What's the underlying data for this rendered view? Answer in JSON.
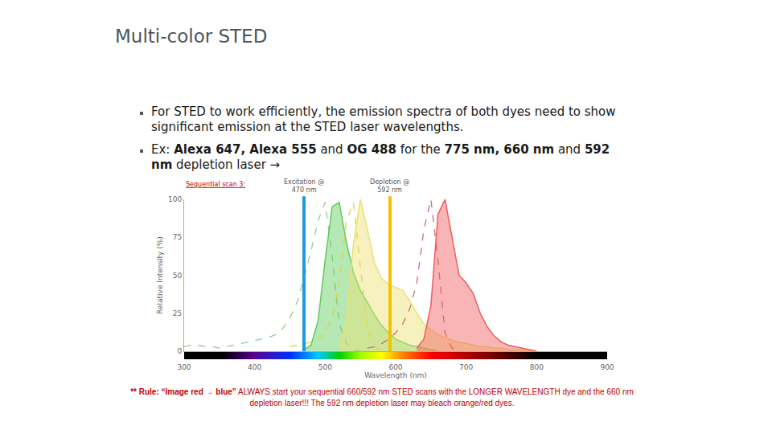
{
  "slide": {
    "title": "Multi-color STED",
    "bullets": [
      [
        {
          "text": "For STED to work efficiently, the emission spectra of both dyes need to show significant emission at the STED laser wavelengths.",
          "bold": false
        }
      ],
      [
        {
          "text": "Ex: ",
          "bold": false
        },
        {
          "text": "Alexa 647, Alexa 555",
          "bold": true
        },
        {
          "text": " and ",
          "bold": false
        },
        {
          "text": "OG 488",
          "bold": true
        },
        {
          "text": " for the ",
          "bold": false
        },
        {
          "text": "775 nm, 660 nm",
          "bold": true
        },
        {
          "text": " and ",
          "bold": false
        },
        {
          "text": "592 nm",
          "bold": true
        },
        {
          "text": " depletion laser →",
          "bold": false
        }
      ]
    ],
    "footer": [
      {
        "text": "** Rule: “Image red → blue”",
        "bold": true
      },
      {
        "text": " ALWAYS start your sequential 660/592 nm STED scans with the LONGER WAVELENGTH dye and the 660 nm depletion laser!!! The 592 nm depletion laser may bleach orange/red dyes.",
        "bold": false
      }
    ]
  },
  "chart_data": {
    "type": "line",
    "note": "Sequential scan 3:",
    "x_label": "Wavelength (nm)",
    "y_label": "Relative Intensity (%)",
    "xlim": [
      300,
      900
    ],
    "xticks": [
      300,
      400,
      500,
      600,
      700,
      800,
      900
    ],
    "ylim": [
      0,
      100
    ],
    "yticks": [
      0,
      25,
      50,
      75,
      100
    ],
    "grid": false,
    "x": [
      300,
      310,
      320,
      330,
      340,
      350,
      360,
      370,
      380,
      390,
      400,
      410,
      420,
      430,
      440,
      450,
      460,
      470,
      480,
      490,
      500,
      510,
      520,
      530,
      540,
      550,
      560,
      570,
      580,
      590,
      600,
      610,
      620,
      630,
      640,
      650,
      660,
      670,
      680,
      690,
      700,
      710,
      720,
      730,
      740,
      750,
      760,
      770,
      780,
      790,
      800
    ],
    "lasers": [
      {
        "label": [
          "Excitation @",
          "470 nm"
        ],
        "x": 470,
        "color": "#1e9be0"
      },
      {
        "label": [
          "Depletion @",
          "592 nm"
        ],
        "x": 592,
        "color": "#f2c200"
      }
    ],
    "series": [
      {
        "type": "line",
        "line_style": "dashed",
        "color": "#8fd18f",
        "values": [
          3,
          4,
          4,
          3,
          3,
          2,
          3,
          4,
          5,
          6,
          7,
          8,
          9,
          11,
          15,
          22,
          32,
          48,
          66,
          86,
          98,
          62,
          18,
          5,
          1,
          0,
          0,
          null,
          null,
          null,
          null,
          null,
          null,
          null,
          null,
          null,
          null,
          null,
          null,
          null,
          null,
          null,
          null,
          null,
          null,
          null,
          null,
          null,
          null,
          null,
          null
        ]
      },
      {
        "type": "area",
        "line_style": "solid",
        "color": "#5ecb5e",
        "values": [
          null,
          null,
          null,
          null,
          null,
          null,
          null,
          null,
          null,
          null,
          null,
          null,
          null,
          null,
          null,
          null,
          null,
          1,
          4,
          20,
          60,
          95,
          98,
          72,
          52,
          40,
          32,
          24,
          17,
          12,
          8,
          6,
          4,
          3,
          2,
          1,
          0,
          null,
          null,
          null,
          null,
          null,
          null,
          null,
          null,
          null,
          null,
          null,
          null,
          null,
          null
        ]
      },
      {
        "type": "line",
        "line_style": "dashed",
        "color": "#e0d040",
        "values": [
          null,
          null,
          null,
          null,
          null,
          null,
          null,
          null,
          null,
          null,
          null,
          null,
          null,
          null,
          null,
          3,
          4,
          5,
          6,
          8,
          12,
          22,
          45,
          85,
          98,
          55,
          15,
          3,
          0,
          null,
          null,
          null,
          null,
          null,
          null,
          null,
          null,
          null,
          null,
          null,
          null,
          null,
          null,
          null,
          null,
          null,
          null,
          null,
          null,
          null,
          null
        ]
      },
      {
        "type": "area",
        "line_style": "solid",
        "color": "#ece070",
        "values": [
          null,
          null,
          null,
          null,
          null,
          null,
          null,
          null,
          null,
          null,
          null,
          null,
          null,
          null,
          null,
          null,
          null,
          null,
          null,
          null,
          null,
          null,
          2,
          20,
          70,
          100,
          80,
          58,
          48,
          44,
          42,
          40,
          33,
          25,
          18,
          14,
          11,
          9,
          7,
          6,
          5,
          4,
          3,
          3,
          2,
          2,
          1,
          1,
          1,
          0,
          0
        ]
      },
      {
        "type": "line",
        "line_style": "dashed",
        "color": "#c87070",
        "values": [
          null,
          null,
          null,
          null,
          null,
          null,
          null,
          null,
          null,
          null,
          null,
          null,
          null,
          null,
          null,
          null,
          null,
          null,
          null,
          null,
          null,
          null,
          null,
          null,
          null,
          null,
          2,
          3,
          5,
          8,
          12,
          18,
          28,
          45,
          80,
          100,
          60,
          12,
          2,
          0,
          null,
          null,
          null,
          null,
          null,
          null,
          null,
          null,
          null,
          null,
          null
        ]
      },
      {
        "type": "area",
        "line_style": "solid",
        "color": "#f25c5c",
        "values": [
          null,
          null,
          null,
          null,
          null,
          null,
          null,
          null,
          null,
          null,
          null,
          null,
          null,
          null,
          null,
          null,
          null,
          null,
          null,
          null,
          null,
          null,
          null,
          null,
          null,
          null,
          null,
          null,
          null,
          null,
          null,
          null,
          null,
          2,
          8,
          30,
          90,
          100,
          75,
          50,
          45,
          38,
          25,
          16,
          10,
          6,
          4,
          3,
          2,
          1,
          0
        ]
      }
    ]
  }
}
